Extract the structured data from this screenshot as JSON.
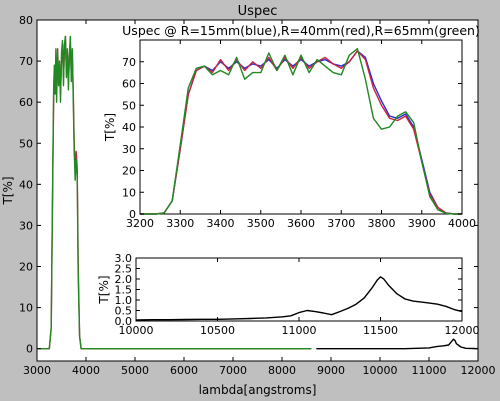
{
  "figure": {
    "background": "#bfbfbf",
    "plot_background": "#ffffff"
  },
  "chart_data": [
    {
      "id": "main",
      "type": "line",
      "title": "Uspec",
      "xlabel": "lambda[angstroms]",
      "ylabel": "T[%]",
      "xlim": [
        3000,
        12000
      ],
      "ylim": [
        -3,
        80
      ],
      "xticks": [
        3000,
        4000,
        5000,
        6000,
        7000,
        8000,
        9000,
        10000,
        11000,
        12000
      ],
      "yticks": [
        0,
        10,
        20,
        30,
        40,
        50,
        60,
        70,
        80
      ],
      "series": [
        {
          "color": "#cc2244",
          "points": [
            [
              3000,
              0
            ],
            [
              3250,
              0
            ],
            [
              3290,
              5
            ],
            [
              3320,
              40
            ],
            [
              3340,
              62
            ],
            [
              3355,
              68
            ],
            [
              3370,
              64
            ],
            [
              3385,
              70
            ],
            [
              3400,
              62
            ],
            [
              3420,
              73
            ],
            [
              3440,
              66
            ],
            [
              3460,
              69
            ],
            [
              3480,
              62
            ],
            [
              3500,
              70
            ],
            [
              3520,
              74
            ],
            [
              3540,
              66
            ],
            [
              3560,
              72
            ],
            [
              3580,
              76
            ],
            [
              3600,
              68
            ],
            [
              3620,
              72
            ],
            [
              3640,
              65
            ],
            [
              3660,
              70
            ],
            [
              3680,
              75
            ],
            [
              3700,
              67
            ],
            [
              3720,
              72
            ],
            [
              3740,
              62
            ],
            [
              3760,
              50
            ],
            [
              3780,
              44
            ],
            [
              3800,
              48
            ],
            [
              3820,
              44
            ],
            [
              3840,
              20
            ],
            [
              3870,
              3
            ],
            [
              3900,
              0
            ],
            [
              8600,
              0
            ]
          ]
        },
        {
          "color": "#228822",
          "points": [
            [
              3000,
              0
            ],
            [
              3250,
              0
            ],
            [
              3290,
              5
            ],
            [
              3320,
              42
            ],
            [
              3340,
              64
            ],
            [
              3355,
              69
            ],
            [
              3370,
              62
            ],
            [
              3385,
              73
            ],
            [
              3400,
              60
            ],
            [
              3420,
              72
            ],
            [
              3440,
              64
            ],
            [
              3460,
              70
            ],
            [
              3480,
              60
            ],
            [
              3500,
              72
            ],
            [
              3520,
              75
            ],
            [
              3540,
              64
            ],
            [
              3560,
              74
            ],
            [
              3580,
              76
            ],
            [
              3600,
              66
            ],
            [
              3620,
              73
            ],
            [
              3640,
              63
            ],
            [
              3660,
              71
            ],
            [
              3680,
              76
            ],
            [
              3700,
              65
            ],
            [
              3720,
              73
            ],
            [
              3740,
              60
            ],
            [
              3760,
              48
            ],
            [
              3780,
              41
            ],
            [
              3800,
              46
            ],
            [
              3820,
              42
            ],
            [
              3840,
              18
            ],
            [
              3870,
              3
            ],
            [
              3900,
              0
            ],
            [
              8600,
              0
            ]
          ]
        },
        {
          "color": "#000000",
          "points": [
            [
              8700,
              0
            ],
            [
              10000,
              0
            ],
            [
              10500,
              0
            ],
            [
              11000,
              0.2
            ],
            [
              11150,
              0.5
            ],
            [
              11300,
              0.7
            ],
            [
              11400,
              0.9
            ],
            [
              11450,
              1.6
            ],
            [
              11500,
              2.3
            ],
            [
              11530,
              2.0
            ],
            [
              11560,
              1.2
            ],
            [
              11650,
              0.4
            ],
            [
              11750,
              0.1
            ],
            [
              11900,
              0.05
            ],
            [
              12000,
              0
            ]
          ]
        }
      ]
    },
    {
      "id": "inset_top",
      "type": "line",
      "title": "Uspec @ R=15mm(blue),R=40mm(red),R=65mm(green)",
      "xlabel": "",
      "ylabel": "T[%]",
      "xlim": [
        3200,
        4000
      ],
      "ylim": [
        0,
        80
      ],
      "xticks": [
        3200,
        3300,
        3400,
        3500,
        3600,
        3700,
        3800,
        3900,
        4000
      ],
      "yticks": [
        0,
        10,
        20,
        30,
        40,
        50,
        60,
        70
      ],
      "series": [
        {
          "color": "#2233cc",
          "points": [
            [
              3200,
              0
            ],
            [
              3240,
              0
            ],
            [
              3260,
              0.5
            ],
            [
              3280,
              6
            ],
            [
              3300,
              30
            ],
            [
              3320,
              55
            ],
            [
              3340,
              66
            ],
            [
              3360,
              68
            ],
            [
              3380,
              66
            ],
            [
              3400,
              70
            ],
            [
              3420,
              67
            ],
            [
              3440,
              70
            ],
            [
              3460,
              67
            ],
            [
              3480,
              69
            ],
            [
              3500,
              68
            ],
            [
              3520,
              71
            ],
            [
              3540,
              67
            ],
            [
              3560,
              71
            ],
            [
              3580,
              68
            ],
            [
              3600,
              71
            ],
            [
              3620,
              68
            ],
            [
              3640,
              70
            ],
            [
              3660,
              71
            ],
            [
              3680,
              69
            ],
            [
              3700,
              68
            ],
            [
              3720,
              70
            ],
            [
              3740,
              75
            ],
            [
              3760,
              72
            ],
            [
              3780,
              60
            ],
            [
              3800,
              52
            ],
            [
              3820,
              45
            ],
            [
              3840,
              44
            ],
            [
              3860,
              46
            ],
            [
              3880,
              40
            ],
            [
              3900,
              25
            ],
            [
              3920,
              10
            ],
            [
              3940,
              3
            ],
            [
              3960,
              0.5
            ],
            [
              3980,
              0
            ],
            [
              4000,
              0
            ]
          ]
        },
        {
          "color": "#cc2244",
          "points": [
            [
              3200,
              0
            ],
            [
              3240,
              0
            ],
            [
              3260,
              0.5
            ],
            [
              3280,
              6
            ],
            [
              3300,
              30
            ],
            [
              3320,
              55
            ],
            [
              3340,
              66
            ],
            [
              3360,
              68
            ],
            [
              3380,
              65
            ],
            [
              3400,
              71
            ],
            [
              3420,
              66
            ],
            [
              3440,
              71
            ],
            [
              3460,
              66
            ],
            [
              3480,
              70
            ],
            [
              3500,
              67
            ],
            [
              3520,
              72
            ],
            [
              3540,
              66
            ],
            [
              3560,
              72
            ],
            [
              3580,
              67
            ],
            [
              3600,
              72
            ],
            [
              3620,
              67
            ],
            [
              3640,
              70
            ],
            [
              3660,
              72
            ],
            [
              3680,
              69
            ],
            [
              3700,
              67
            ],
            [
              3720,
              70
            ],
            [
              3740,
              75
            ],
            [
              3760,
              71
            ],
            [
              3780,
              58
            ],
            [
              3800,
              50
            ],
            [
              3820,
              44
            ],
            [
              3840,
              43
            ],
            [
              3860,
              45
            ],
            [
              3880,
              39
            ],
            [
              3900,
              24
            ],
            [
              3920,
              9
            ],
            [
              3940,
              3
            ],
            [
              3960,
              0.5
            ],
            [
              3980,
              0
            ],
            [
              4000,
              0
            ]
          ]
        },
        {
          "color": "#228822",
          "points": [
            [
              3200,
              0
            ],
            [
              3240,
              0
            ],
            [
              3260,
              0.5
            ],
            [
              3280,
              6
            ],
            [
              3300,
              32
            ],
            [
              3320,
              58
            ],
            [
              3340,
              67
            ],
            [
              3360,
              68
            ],
            [
              3380,
              64
            ],
            [
              3400,
              66
            ],
            [
              3420,
              64
            ],
            [
              3440,
              72
            ],
            [
              3460,
              62
            ],
            [
              3480,
              65
            ],
            [
              3500,
              65
            ],
            [
              3520,
              74
            ],
            [
              3540,
              66
            ],
            [
              3560,
              73
            ],
            [
              3580,
              64
            ],
            [
              3600,
              73
            ],
            [
              3620,
              65
            ],
            [
              3640,
              71
            ],
            [
              3660,
              68
            ],
            [
              3680,
              65
            ],
            [
              3700,
              64
            ],
            [
              3720,
              73
            ],
            [
              3740,
              76
            ],
            [
              3760,
              62
            ],
            [
              3780,
              44
            ],
            [
              3800,
              39
            ],
            [
              3820,
              40
            ],
            [
              3840,
              45
            ],
            [
              3860,
              47
            ],
            [
              3880,
              42
            ],
            [
              3900,
              24
            ],
            [
              3920,
              8
            ],
            [
              3940,
              2
            ],
            [
              3960,
              0.3
            ],
            [
              3980,
              0
            ],
            [
              4000,
              0
            ]
          ]
        }
      ]
    },
    {
      "id": "inset_bottom",
      "type": "line",
      "title": "",
      "xlabel": "",
      "ylabel": "T[%]",
      "xlim": [
        10000,
        12000
      ],
      "ylim": [
        0,
        3
      ],
      "xticks": [
        10000,
        10500,
        11000,
        11500,
        12000
      ],
      "yticks": [
        0.0,
        0.5,
        1.0,
        1.5,
        2.0,
        2.5,
        3.0
      ],
      "ytick_labels": [
        "0.0",
        "0.5",
        "1.0",
        "1.5",
        "2.0",
        "2.5",
        "3.0"
      ],
      "series": [
        {
          "color": "#000000",
          "points": [
            [
              10000,
              0.05
            ],
            [
              10100,
              0.06
            ],
            [
              10200,
              0.06
            ],
            [
              10300,
              0.07
            ],
            [
              10400,
              0.08
            ],
            [
              10500,
              0.08
            ],
            [
              10600,
              0.1
            ],
            [
              10700,
              0.12
            ],
            [
              10800,
              0.15
            ],
            [
              10900,
              0.2
            ],
            [
              10950,
              0.25
            ],
            [
              11000,
              0.4
            ],
            [
              11050,
              0.5
            ],
            [
              11100,
              0.45
            ],
            [
              11150,
              0.38
            ],
            [
              11200,
              0.3
            ],
            [
              11250,
              0.45
            ],
            [
              11300,
              0.6
            ],
            [
              11350,
              0.8
            ],
            [
              11400,
              1.1
            ],
            [
              11450,
              1.6
            ],
            [
              11480,
              1.95
            ],
            [
              11500,
              2.1
            ],
            [
              11520,
              2.0
            ],
            [
              11550,
              1.7
            ],
            [
              11600,
              1.3
            ],
            [
              11650,
              1.05
            ],
            [
              11700,
              0.95
            ],
            [
              11750,
              0.9
            ],
            [
              11800,
              0.85
            ],
            [
              11850,
              0.8
            ],
            [
              11900,
              0.7
            ],
            [
              11950,
              0.55
            ],
            [
              12000,
              0.45
            ]
          ]
        }
      ]
    }
  ]
}
